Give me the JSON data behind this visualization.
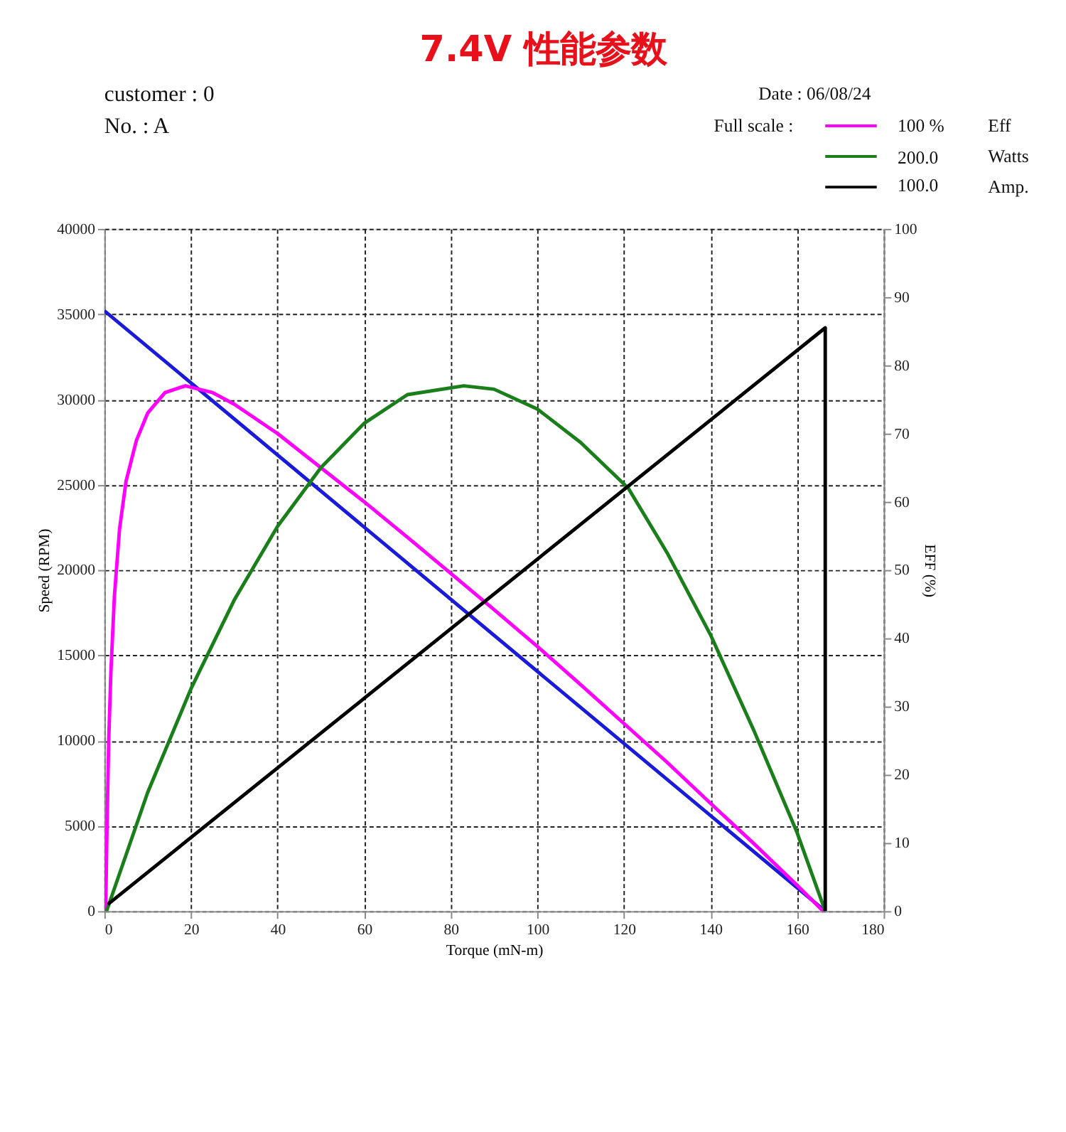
{
  "chart_data": {
    "type": "line",
    "title": "7.4V 性能参数",
    "xlabel": "Torque (mN-m)",
    "ylabel": "Speed (RPM)",
    "y2label": "EFF (%)",
    "xlim": [
      0,
      180
    ],
    "xticks": [
      0,
      20,
      40,
      60,
      80,
      100,
      120,
      140,
      160,
      180
    ],
    "ylim": [
      0,
      40000
    ],
    "yticks": [
      0,
      5000,
      10000,
      15000,
      20000,
      25000,
      30000,
      35000,
      40000
    ],
    "y2lim": [
      0,
      100
    ],
    "y2ticks": [
      0,
      10,
      20,
      30,
      40,
      50,
      60,
      70,
      80,
      90,
      100
    ],
    "grid": true,
    "legend": "top right",
    "line_style": "solid",
    "marker": "none",
    "annotations": [
      "customer : 0",
      "No. : A",
      "Date : 06/08/24",
      "Full scale :",
      "100 %",
      "200.0",
      "100.0"
    ],
    "series": [
      {
        "color": "#1a1adb",
        "x": [
          0,
          166.5
        ],
        "values": [
          35200,
          0
        ]
      },
      {
        "name": "Eff",
        "color": "#ff00ff",
        "axis": "y2",
        "x": [
          0.3,
          0.6,
          1,
          1.5,
          2.3,
          3.5,
          5,
          7.4,
          10,
          14,
          18.7,
          25,
          30,
          40,
          50,
          60,
          70,
          80,
          90,
          100,
          110,
          120,
          130,
          140,
          150,
          160,
          166
        ],
        "values": [
          0,
          12,
          25,
          35,
          46,
          56,
          63,
          69,
          73,
          76,
          77,
          76,
          74.3,
          70,
          65,
          60,
          54.8,
          49.5,
          44.2,
          38.8,
          33.2,
          27.5,
          21.8,
          15.8,
          9.9,
          3.8,
          0
        ]
      },
      {
        "name": "Watts",
        "color": "#1a7f1a",
        "axis": "y2",
        "x": [
          0.5,
          10,
          20,
          30,
          40,
          50,
          60,
          70,
          83,
          90,
          100,
          110,
          121,
          130,
          140,
          150,
          160,
          166.5
        ],
        "values": [
          0,
          17.4,
          32.6,
          45.6,
          56.4,
          65,
          71.5,
          75.7,
          77,
          76.5,
          73.6,
          68.7,
          62,
          52.5,
          40.5,
          26.5,
          11.5,
          0
        ]
      },
      {
        "name": "Amp.",
        "color": "#000000",
        "axis": "y2",
        "x": [
          0.8,
          166.5,
          166.5
        ],
        "values": [
          1,
          85.5,
          0
        ]
      }
    ]
  }
}
